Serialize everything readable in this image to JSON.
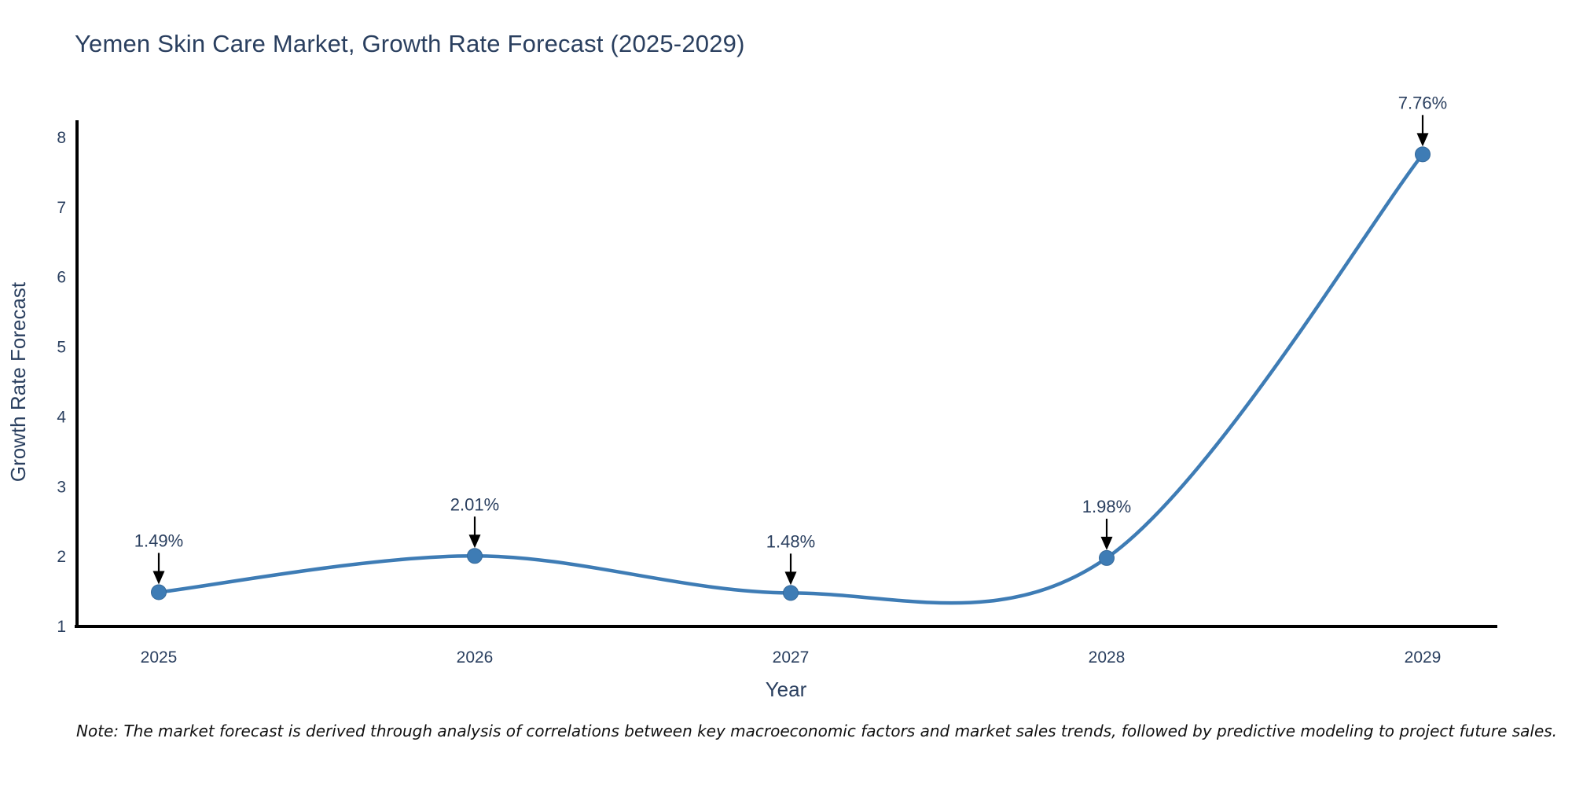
{
  "chart_data": {
    "type": "line",
    "title": "Yemen Skin Care Market, Growth Rate Forecast (2025-2029)",
    "xlabel": "Year",
    "ylabel": "Growth Rate Forecast",
    "categories": [
      "2025",
      "2026",
      "2027",
      "2028",
      "2029"
    ],
    "values": [
      1.49,
      2.01,
      1.48,
      1.98,
      7.76
    ],
    "point_labels": [
      "1.49%",
      "2.01%",
      "1.48%",
      "1.98%",
      "7.76%"
    ],
    "series": [
      {
        "name": "Growth Rate Forecast",
        "values": [
          1.49,
          2.01,
          1.48,
          1.98,
          7.76
        ]
      }
    ],
    "ylim": [
      1,
      8
    ],
    "yticks": [
      1,
      2,
      3,
      4,
      5,
      6,
      7,
      8
    ],
    "grid": false,
    "legend": "none",
    "line_style": "spline",
    "marker": "circle",
    "colors": {
      "line": "#3e7cb5",
      "marker": "#3e7cb5",
      "marker_edge": "#35699a",
      "axis": "#000000",
      "text": "#2a3f5f",
      "annotation_arrow": "#000000",
      "background": "#ffffff"
    }
  },
  "note": "Note: The market forecast is derived through analysis of correlations between key macroeconomic factors and market sales trends, followed by predictive modeling to project future sales."
}
